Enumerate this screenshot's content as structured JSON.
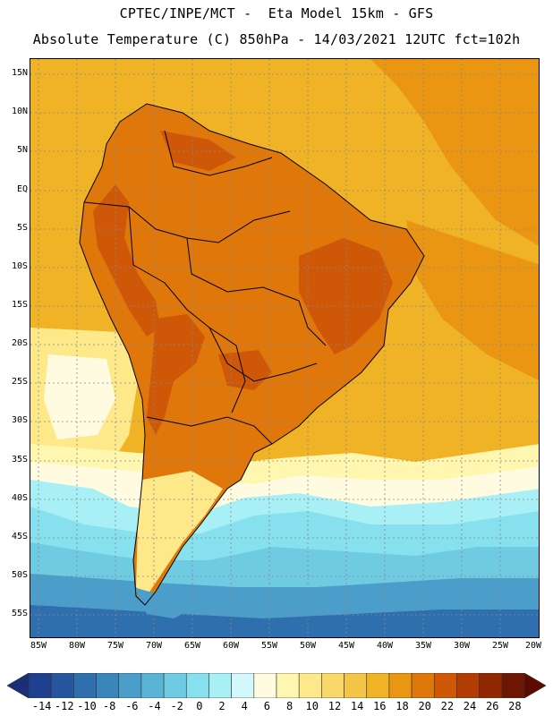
{
  "header": {
    "line1": "CPTEC/INPE/MCT -  Eta Model 15km - GFS",
    "line2": "Absolute Temperature (C) 850hPa - 14/03/2021 12UTC fct=102h"
  },
  "axes": {
    "lat_labels": [
      "15N",
      "10N",
      "5N",
      "EQ",
      "5S",
      "10S",
      "15S",
      "20S",
      "25S",
      "30S",
      "35S",
      "40S",
      "45S",
      "50S",
      "55S"
    ],
    "lon_labels": [
      "85W",
      "80W",
      "75W",
      "70W",
      "65W",
      "60W",
      "55W",
      "50W",
      "45W",
      "40W",
      "35W",
      "30W",
      "25W",
      "20W"
    ]
  },
  "colorbar": {
    "labels": [
      "-14",
      "-12",
      "-10",
      "-8",
      "-6",
      "-4",
      "-2",
      "0",
      "2",
      "4",
      "6",
      "8",
      "10",
      "12",
      "14",
      "16",
      "18",
      "20",
      "22",
      "24",
      "26",
      "28"
    ],
    "colors": [
      "#1f3f8f",
      "#27569e",
      "#2f6fad",
      "#3a86bb",
      "#4a9ec9",
      "#5bb4d6",
      "#6ecbe2",
      "#86e0ee",
      "#a8f0f6",
      "#d2f8fb",
      "#fffbe0",
      "#fff7b0",
      "#fde98a",
      "#f9d86a",
      "#f5c548",
      "#f0b325",
      "#eb9612",
      "#e0770b",
      "#cf5708",
      "#b33c05",
      "#922703",
      "#6e1602"
    ],
    "under_color": "#1a2f78",
    "over_color": "#5a0a01"
  },
  "map_colors": {
    "ocean_warm": "#f0b325",
    "ocean_warmer": "#eb9612",
    "land_hot": "#e0770b",
    "land_hotter": "#cf5708",
    "cool_mid": "#fde98a",
    "cool_pale": "#fff7b0",
    "cream": "#fffbe0",
    "cyan_pale": "#a8f0f6",
    "cyan": "#86e0ee",
    "blue_light": "#6ecbe2",
    "blue_mid": "#4a9ec9",
    "blue_dark": "#2f6fad"
  }
}
